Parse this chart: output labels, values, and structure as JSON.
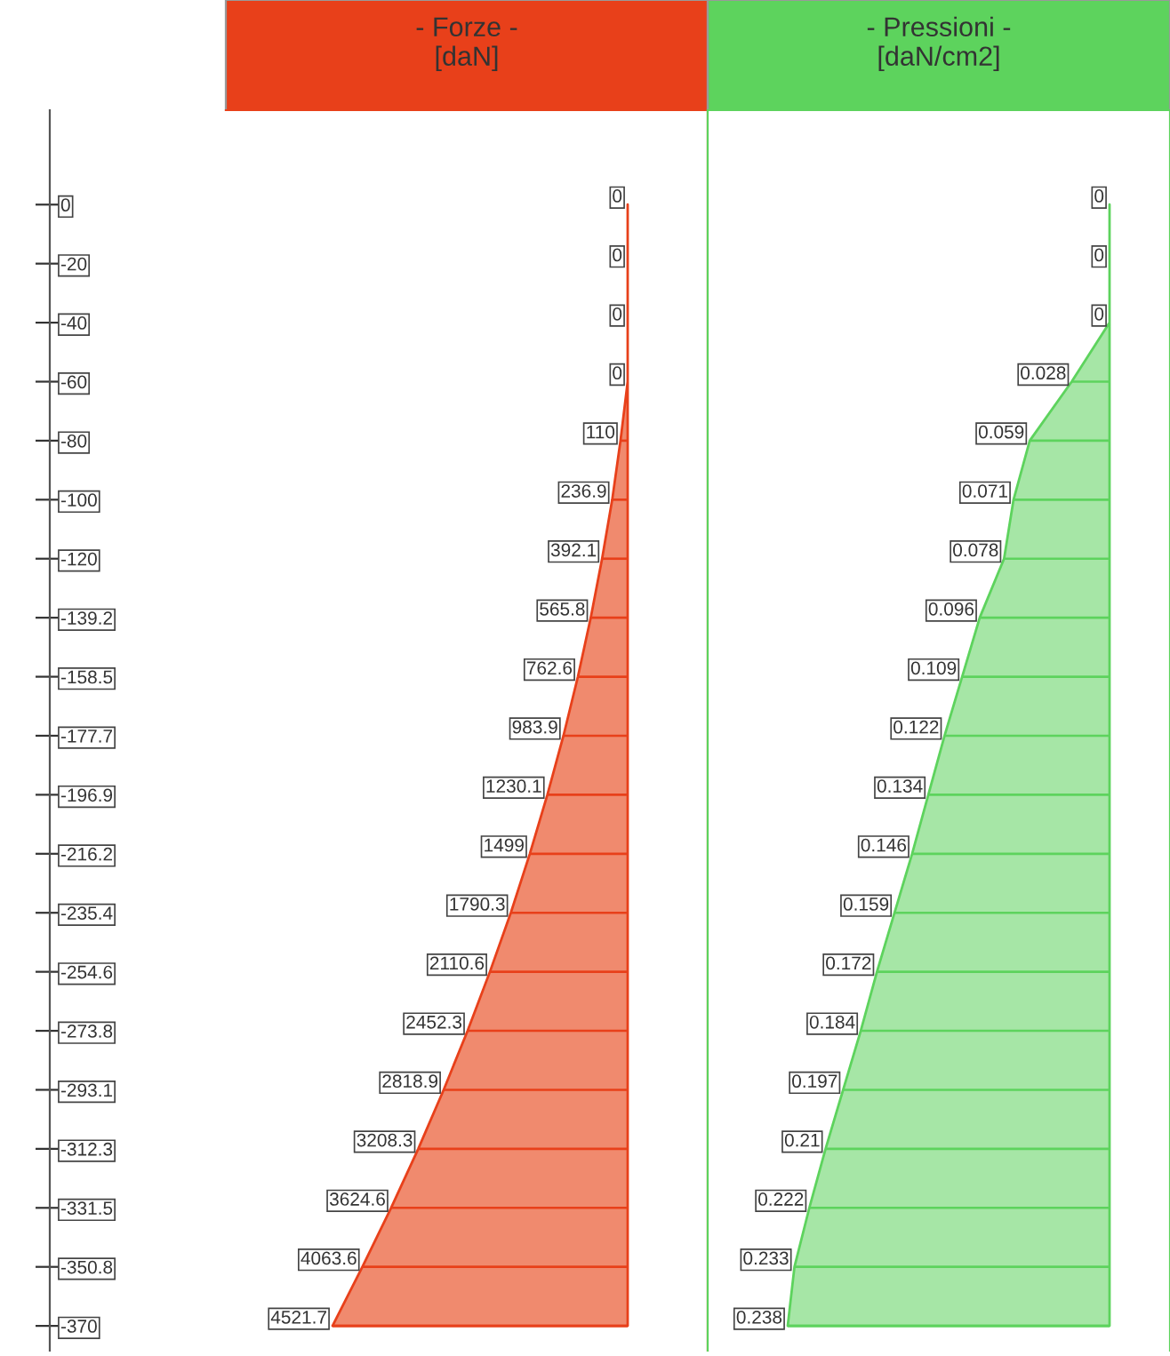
{
  "chart_data": [
    {
      "type": "bar",
      "orientation": "horizontal",
      "title": "- Forze -\n[daN]",
      "categories": [
        "0",
        "-20",
        "-40",
        "-60",
        "-80",
        "-100",
        "-120",
        "-139.2",
        "-158.5",
        "-177.7",
        "-196.9",
        "-216.2",
        "-235.4",
        "-254.6",
        "-273.8",
        "-293.1",
        "-312.3",
        "-331.5",
        "-350.8",
        "-370"
      ],
      "series": [
        {
          "color": "#e8401a",
          "values": [
            0,
            0,
            0,
            0,
            110,
            236.9,
            392.1,
            565.8,
            762.6,
            983.9,
            1230.1,
            1499,
            1790.3,
            2110.6,
            2452.3,
            2818.9,
            3208.3,
            3624.6,
            4063.6,
            4521.7
          ],
          "value_labels": [
            "0",
            "0",
            "0",
            "0",
            "110",
            "236.9",
            "392.1",
            "565.8",
            "762.6",
            "983.9",
            "1230.1",
            "1499",
            "1790.3",
            "2110.6",
            "2452.3",
            "2818.9",
            "3208.3",
            "3624.6",
            "4063.6",
            "4521.7"
          ]
        },
        {
          "type": "area",
          "color": "#f08a6e",
          "values": [
            0,
            0,
            0,
            0,
            110,
            236.9,
            392.1,
            565.8,
            762.6,
            983.9,
            1230.1,
            1499,
            1790.3,
            2110.6,
            2452.3,
            2818.9,
            3208.3,
            3624.6,
            4063.6,
            4521.7
          ]
        }
      ],
      "tick_labels": "y"
    },
    {
      "type": "bar",
      "orientation": "horizontal",
      "title": "- Pressioni -\n[daN/cm2]",
      "categories": [
        "0",
        "-20",
        "-40",
        "-60",
        "-80",
        "-100",
        "-120",
        "-139.2",
        "-158.5",
        "-177.7",
        "-196.9",
        "-216.2",
        "-235.4",
        "-254.6",
        "-273.8",
        "-293.1",
        "-312.3",
        "-331.5",
        "-350.8",
        "-370"
      ],
      "series": [
        {
          "color": "#5dd35d",
          "values": [
            0,
            0,
            0,
            0.028,
            0.059,
            0.071,
            0.078,
            0.096,
            0.109,
            0.122,
            0.134,
            0.146,
            0.159,
            0.172,
            0.184,
            0.197,
            0.21,
            0.222,
            0.233,
            0.238
          ],
          "value_labels": [
            "0",
            "0",
            "0",
            "0.028",
            "0.059",
            "0.071",
            "0.078",
            "0.096",
            "0.109",
            "0.122",
            "0.134",
            "0.146",
            "0.159",
            "0.172",
            "0.184",
            "0.197",
            "0.21",
            "0.222",
            "0.233",
            "0.238"
          ]
        },
        {
          "type": "area",
          "color": "#a6e6a6",
          "values": [
            0,
            0,
            0,
            0.028,
            0.059,
            0.071,
            0.078,
            0.096,
            0.109,
            0.122,
            0.134,
            0.146,
            0.159,
            0.172,
            0.184,
            0.197,
            0.21,
            0.222,
            0.233,
            0.238
          ]
        }
      ],
      "tick_labels": false
    }
  ]
}
